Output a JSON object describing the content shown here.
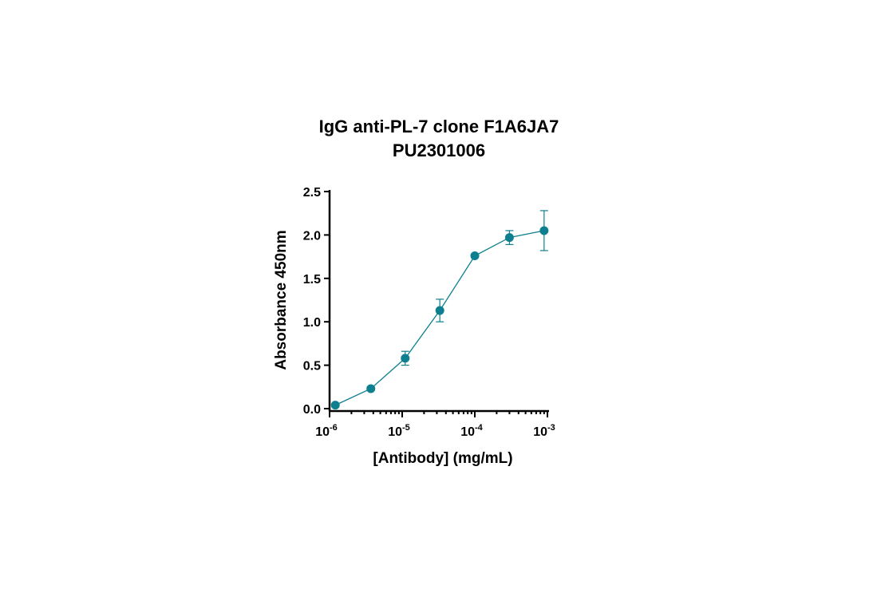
{
  "chart_data": {
    "type": "scatter",
    "title": "IgG anti-PL-7 clone F1A6JA7",
    "subtitle": "PU2301006",
    "xlabel": "[Antibody] (mg/mL)",
    "ylabel": "Absorbance 450nm",
    "x_scale": "log",
    "xlim": [
      1e-06,
      0.001
    ],
    "ylim": [
      0,
      2.5
    ],
    "x_ticks": [
      {
        "base": "10",
        "exp": "-6",
        "value": 1e-06
      },
      {
        "base": "10",
        "exp": "-5",
        "value": 1e-05
      },
      {
        "base": "10",
        "exp": "-4",
        "value": 0.0001
      },
      {
        "base": "10",
        "exp": "-3",
        "value": 0.001
      }
    ],
    "y_ticks": [
      "0.0",
      "0.5",
      "1.0",
      "1.5",
      "2.0",
      "2.5"
    ],
    "y_tick_values": [
      0,
      0.5,
      1.0,
      1.5,
      2.0,
      2.5
    ],
    "color": "#0e7f8e",
    "grid": false,
    "series": [
      {
        "x": [
          1.2e-06,
          3.7e-06,
          1.1e-05,
          3.3e-05,
          0.0001,
          0.0003,
          0.0009
        ],
        "y": [
          0.04,
          0.23,
          0.58,
          1.13,
          1.76,
          1.97,
          2.05
        ],
        "error": [
          0.02,
          0.02,
          0.08,
          0.13,
          0.02,
          0.08,
          0.23
        ]
      }
    ]
  }
}
